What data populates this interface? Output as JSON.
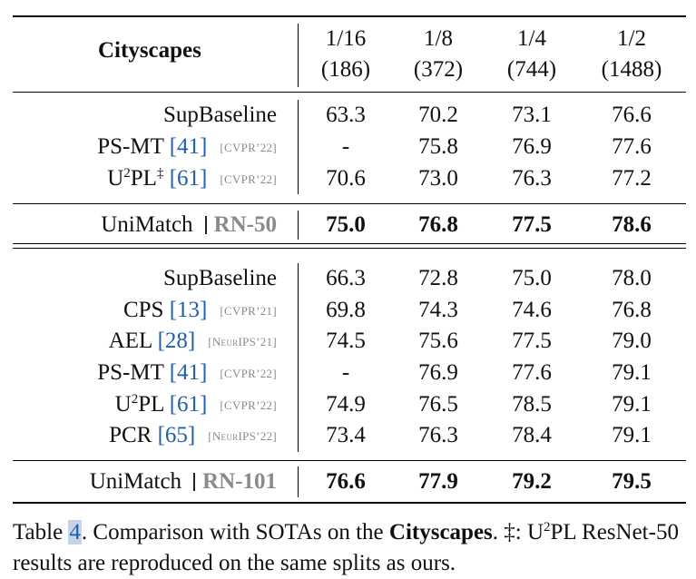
{
  "table": {
    "header": {
      "title": "Cityscapes",
      "splits": [
        {
          "fraction": "1/16",
          "count": "(186)"
        },
        {
          "fraction": "1/8",
          "count": "(372)"
        },
        {
          "fraction": "1/4",
          "count": "(744)"
        },
        {
          "fraction": "1/2",
          "count": "(1488)"
        }
      ]
    },
    "section1": {
      "rows": [
        {
          "name": "SupBaseline",
          "cite": "",
          "venue": "",
          "values": [
            "63.3",
            "70.2",
            "73.1",
            "76.6"
          ]
        },
        {
          "name": "PS-MT",
          "cite": "[41]",
          "venue": "[CVPR’22]",
          "values": [
            "-",
            "75.8",
            "76.9",
            "77.6"
          ]
        },
        {
          "name_prefix": "U",
          "name_sup": "2",
          "name_suffix": "PL",
          "name_mark": "‡",
          "cite": "[61]",
          "venue": "[CVPR’22]",
          "values": [
            "70.6",
            "73.0",
            "76.3",
            "77.2"
          ]
        }
      ],
      "ours": {
        "name": "UniMatch",
        "backbone": "RN-50",
        "values": [
          "75.0",
          "76.8",
          "77.5",
          "78.6"
        ]
      }
    },
    "section2": {
      "rows": [
        {
          "name": "SupBaseline",
          "cite": "",
          "venue": "",
          "values": [
            "66.3",
            "72.8",
            "75.0",
            "78.0"
          ]
        },
        {
          "name": "CPS",
          "cite": "[13]",
          "venue": "[CVPR’21]",
          "values": [
            "69.8",
            "74.3",
            "74.6",
            "76.8"
          ]
        },
        {
          "name": "AEL",
          "cite": "[28]",
          "venue": "[NeurIPS’21]",
          "values": [
            "74.5",
            "75.6",
            "77.5",
            "79.0"
          ]
        },
        {
          "name": "PS-MT",
          "cite": "[41]",
          "venue": "[CVPR’22]",
          "values": [
            "-",
            "76.9",
            "77.6",
            "79.1"
          ]
        },
        {
          "name_prefix": "U",
          "name_sup": "2",
          "name_suffix": "PL",
          "cite": "[61]",
          "venue": "[CVPR’22]",
          "values": [
            "74.9",
            "76.5",
            "78.5",
            "79.1"
          ]
        },
        {
          "name": "PCR",
          "cite": "[65]",
          "venue": "[NeurIPS’22]",
          "values": [
            "73.4",
            "76.3",
            "78.4",
            "79.1"
          ]
        }
      ],
      "ours": {
        "name": "UniMatch",
        "backbone": "RN-101",
        "values": [
          "76.6",
          "77.9",
          "79.2",
          "79.5"
        ]
      }
    }
  },
  "caption": {
    "label": "Table",
    "number": "4",
    "text1": ". Comparison with SOTAs on the ",
    "bold": "Cityscapes",
    "text2": ". ‡: U",
    "sup": "2",
    "text3": "PL ResNet-50 results are reproduced on the same splits as ours."
  },
  "colors": {
    "cite": "#1f5fa8",
    "venue": "#8a8a8a",
    "backbone": "#8a8a8a",
    "highlight": "#c6d3e8"
  }
}
